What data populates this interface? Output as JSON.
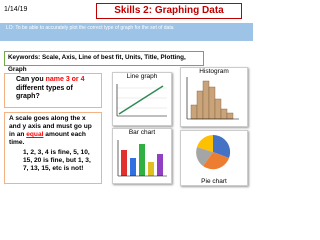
{
  "header": {
    "date": "1/14/19",
    "title": "Skills 2: Graphing Data",
    "objective": "LO: To be able to accurately plot the correct type of graph for the set of data"
  },
  "keywords": "Keywords: Scale, Axis, Line of best fit, Units, Title, Plotting, Graph",
  "question": [
    "Can you ",
    "name",
    " ",
    "3 or 4",
    " different types of graph?"
  ],
  "scale": [
    "A scale goes along the x and y axis and must go up in an ",
    "equal",
    " amount each time.",
    "1, 2, 3, 4 is fine, 5, 10, 15, 20 is fine, but 1, 3, 7, 13, 15, etc is not!"
  ],
  "graphs": [
    "Line graph",
    "Histogram",
    "Bar chart",
    "Pie chart"
  ]
}
